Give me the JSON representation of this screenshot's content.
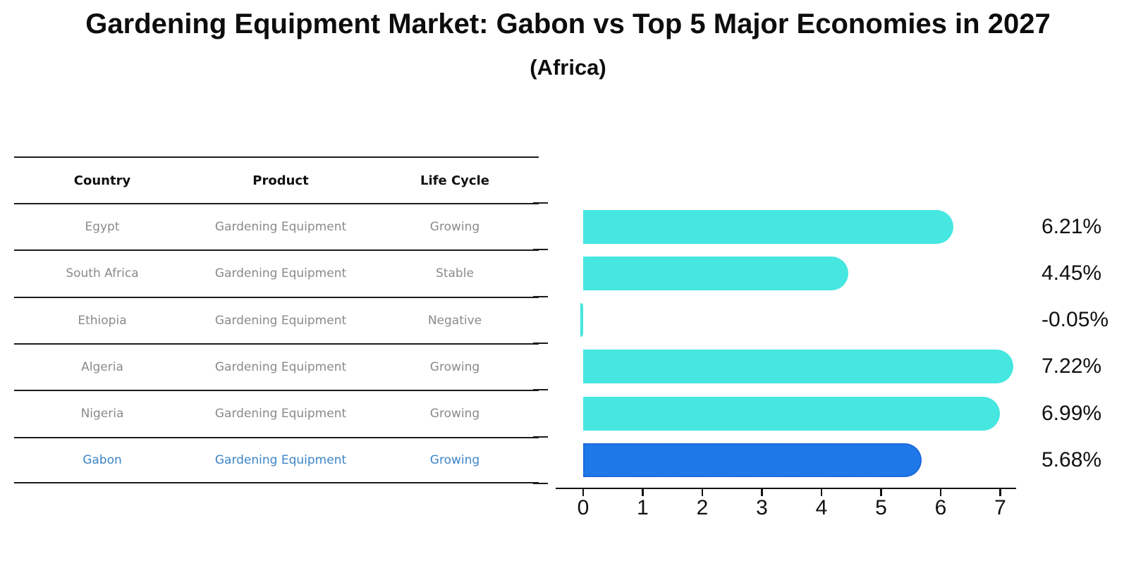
{
  "title": "Gardening Equipment Market: Gabon vs Top 5 Major Economies in 2027",
  "subtitle": "(Africa)",
  "table": {
    "headers": {
      "country": "Country",
      "product": "Product",
      "life_cycle": "Life Cycle"
    },
    "rows": [
      {
        "country": "Egypt",
        "product": "Gardening Equipment",
        "life_cycle": "Growing"
      },
      {
        "country": "South Africa",
        "product": "Gardening Equipment",
        "life_cycle": "Stable"
      },
      {
        "country": "Ethiopia",
        "product": "Gardening Equipment",
        "life_cycle": "Negative"
      },
      {
        "country": "Algeria",
        "product": "Gardening Equipment",
        "life_cycle": "Growing"
      },
      {
        "country": "Nigeria",
        "product": "Gardening Equipment",
        "life_cycle": "Growing"
      },
      {
        "country": "Gabon",
        "product": "Gardening Equipment",
        "life_cycle": "Growing"
      }
    ],
    "highlighted_country": "Gabon"
  },
  "chart_data": {
    "type": "bar",
    "orientation": "horizontal",
    "categories": [
      "Egypt",
      "South Africa",
      "Ethiopia",
      "Algeria",
      "Nigeria",
      "Gabon"
    ],
    "values": [
      6.21,
      4.45,
      -0.05,
      7.22,
      6.99,
      5.68
    ],
    "value_labels": [
      "6.21%",
      "4.45%",
      "-0.05%",
      "7.22%",
      "6.99%",
      "5.68%"
    ],
    "xticks": [
      "0",
      "1",
      "2",
      "3",
      "4",
      "5",
      "6",
      "7"
    ],
    "xlim": [
      -0.1,
      7.35
    ],
    "grid": false,
    "legend": "none",
    "highlight_index": 5,
    "colors": {
      "bar": "#45E7E0",
      "highlight_bar": "#1E78E8",
      "highlight_border": "#1B5CD0",
      "highlight_text": "#3D85C8",
      "row_text": "#8A8A8A",
      "axis": "#111111"
    }
  }
}
